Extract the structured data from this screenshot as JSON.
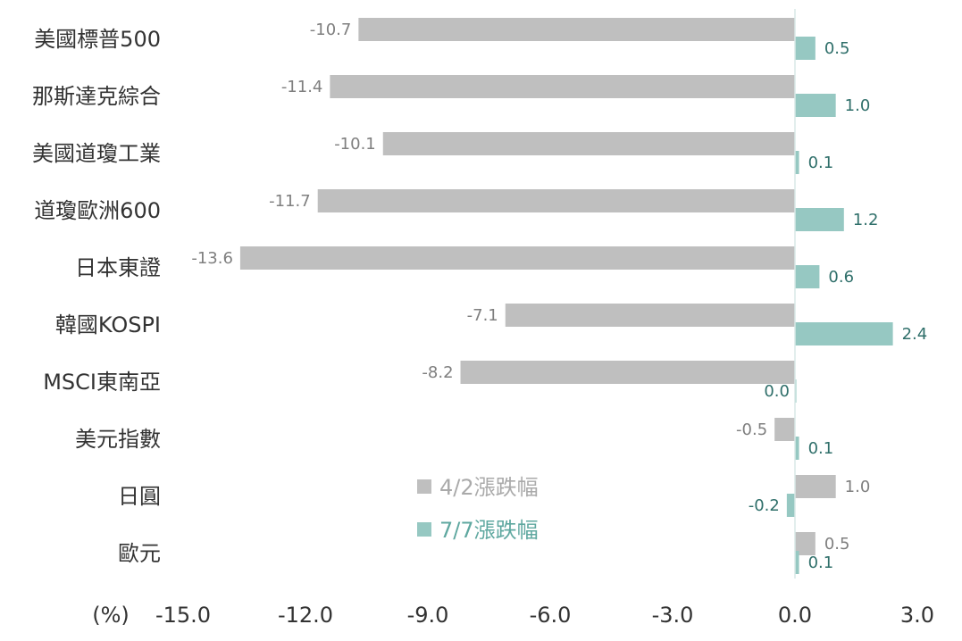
{
  "chart_data": {
    "type": "bar",
    "orientation": "horizontal",
    "categories": [
      "美國標普500",
      "那斯達克綜合",
      "美國道瓊工業",
      "道瓊歐洲600",
      "日本東證",
      "韓國KOSPI",
      "MSCI東南亞",
      "美元指數",
      "日圓",
      "歐元"
    ],
    "series": [
      {
        "name": "4/2漲跌幅",
        "color": "#bfbfbf",
        "values": [
          -10.7,
          -11.4,
          -10.1,
          -11.7,
          -13.6,
          -7.1,
          -8.2,
          -0.5,
          1.0,
          0.5
        ]
      },
      {
        "name": "7/7漲跌幅",
        "color": "#96c8c2",
        "values": [
          0.5,
          1.0,
          0.1,
          1.2,
          0.6,
          2.4,
          0.0,
          0.1,
          -0.2,
          0.1
        ]
      }
    ],
    "value_labels": [
      [
        "-10.7",
        "-11.4",
        "-10.1",
        "-11.7",
        "-13.6",
        "-7.1",
        "-8.2",
        "-0.5",
        "1.0",
        "0.5"
      ],
      [
        "0.5",
        "1.0",
        "0.1",
        "1.2",
        "0.6",
        "2.4",
        "0.0",
        "0.1",
        "-0.2",
        "0.1"
      ]
    ],
    "xlim": [
      -15.0,
      3.0
    ],
    "xticks": [
      -15.0,
      -12.0,
      -9.0,
      -6.0,
      -3.0,
      0.0,
      3.0
    ],
    "xtick_labels": [
      "-15.0",
      "-12.0",
      "-9.0",
      "-6.0",
      "-3.0",
      "0.0",
      "3.0"
    ],
    "unit_label": "(%)",
    "legend_position": "inside-bottom-center",
    "grid": false,
    "zero_line_color": "#d9e9e7"
  }
}
